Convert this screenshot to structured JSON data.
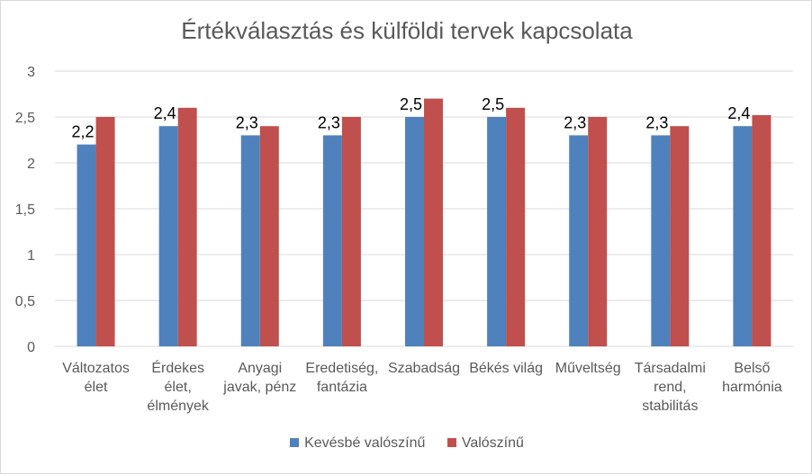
{
  "chart_data": {
    "type": "bar",
    "title": "Értékválasztás és külföldi tervek kapcsolata",
    "xlabel": "",
    "ylabel": "",
    "ylim": [
      0,
      3
    ],
    "yticks": [
      "0",
      "0,5",
      "1",
      "1,5",
      "2",
      "2,5",
      "3"
    ],
    "grid": true,
    "legend_position": "bottom",
    "categories": [
      [
        "Változatos",
        "élet"
      ],
      [
        "Érdekes",
        "élet,",
        "élmények"
      ],
      [
        "Anyagi",
        "javak, pénz"
      ],
      [
        "Eredetiség,",
        "fantázia"
      ],
      [
        "Szabadság"
      ],
      [
        "Békés világ"
      ],
      [
        "Műveltség"
      ],
      [
        "Társadalmi",
        "rend,",
        "stabilitás"
      ],
      [
        "Belső",
        "harmónia"
      ]
    ],
    "series": [
      {
        "name": "Kevésbé valószínű",
        "color": "#4f81bd",
        "values": [
          2.2,
          2.4,
          2.3,
          2.3,
          2.5,
          2.5,
          2.3,
          2.3,
          2.4
        ],
        "data_labels": [
          "2,2",
          "2,4",
          "2,3",
          "2,3",
          "2,5",
          "2,5",
          "2,3",
          "2,3",
          "2,4"
        ]
      },
      {
        "name": "Valószínű",
        "color": "#c0504d",
        "values": [
          2.5,
          2.6,
          2.4,
          2.5,
          2.7,
          2.6,
          2.5,
          2.4,
          2.52
        ]
      }
    ]
  }
}
